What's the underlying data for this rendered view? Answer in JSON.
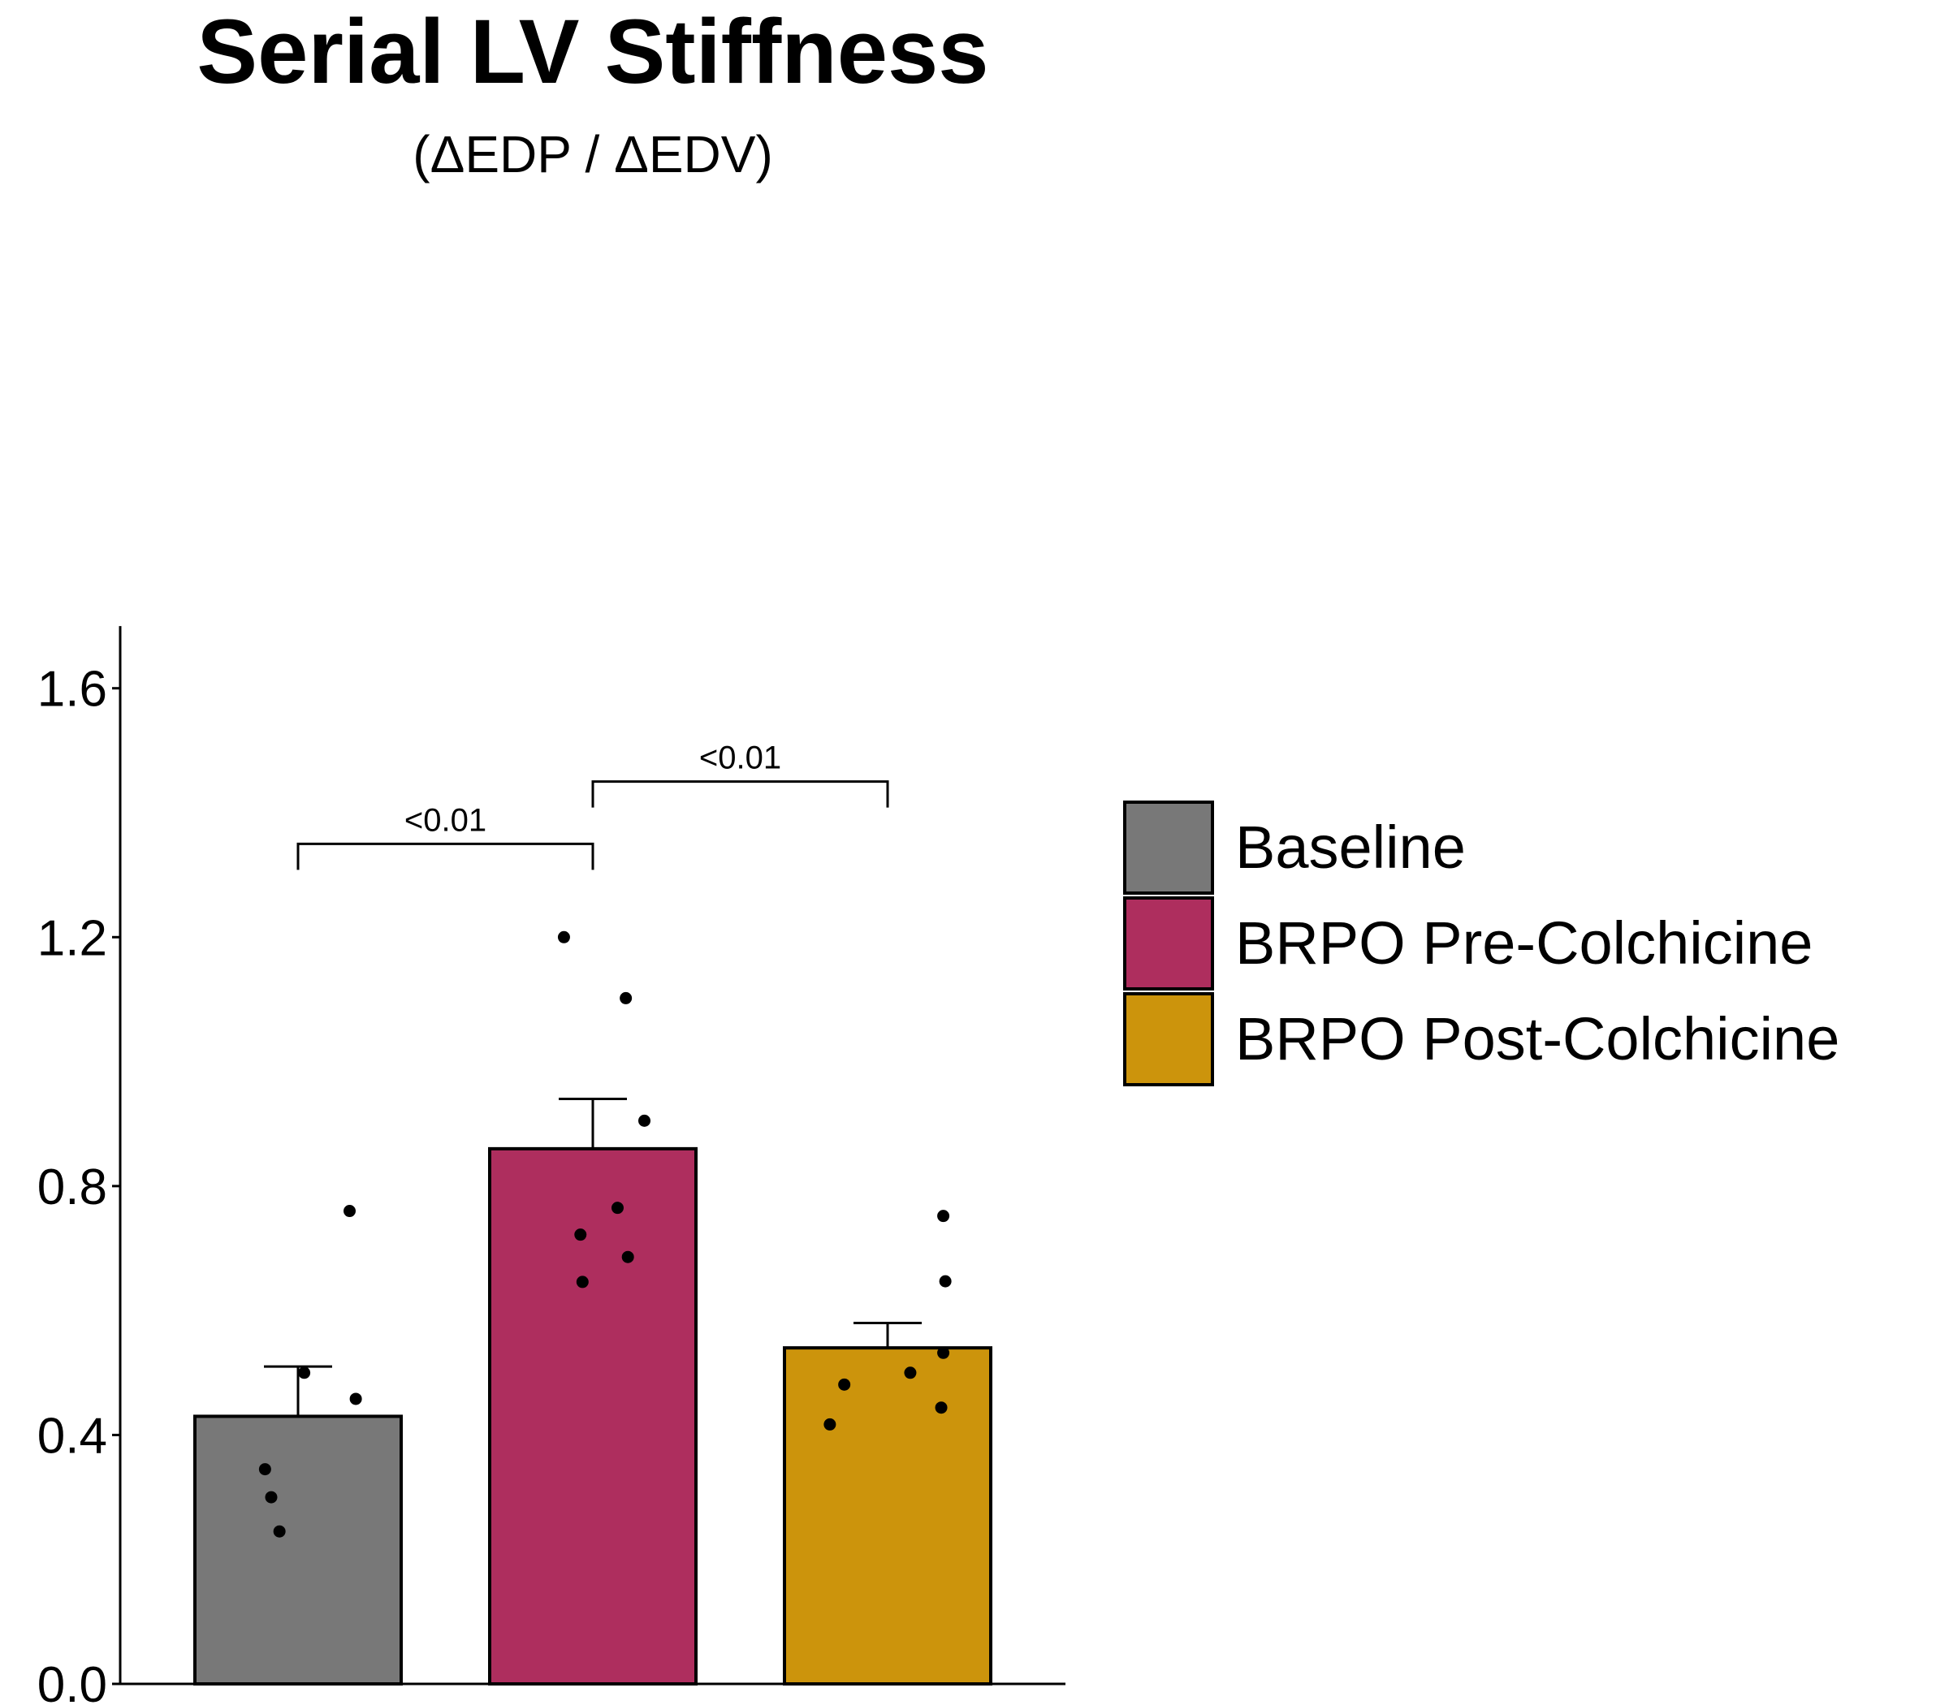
{
  "chart_data": {
    "type": "bar",
    "title": "Serial LV Stiffness",
    "subtitle": "(ΔEDP / ΔEDV)",
    "xlabel": "",
    "ylabel": "",
    "ylim": [
      0,
      1.7
    ],
    "yticks": [
      0.0,
      0.4,
      0.8,
      1.2,
      1.6
    ],
    "ytick_labels": [
      "0.0",
      "0.4",
      "0.8",
      "1.2",
      "1.6"
    ],
    "grid": false,
    "legend_position": "right",
    "categories": [
      "Baseline",
      "BRPO Pre-Colchicine",
      "BRPO Post-Colchicine"
    ],
    "values": [
      0.43,
      0.86,
      0.54
    ],
    "error_upper": [
      0.51,
      0.94,
      0.58
    ],
    "colors": [
      "#787878",
      "#AE2E5E",
      "#CC940C"
    ],
    "points": [
      [
        {
          "x_offset": -0.16,
          "y": 0.345
        },
        {
          "x_offset": -0.13,
          "y": 0.3
        },
        {
          "x_offset": -0.09,
          "y": 0.245
        },
        {
          "x_offset": 0.03,
          "y": 0.5
        },
        {
          "x_offset": 0.25,
          "y": 0.76
        },
        {
          "x_offset": 0.28,
          "y": 0.458
        }
      ],
      [
        {
          "x_offset": -0.14,
          "y": 1.2
        },
        {
          "x_offset": 0.16,
          "y": 1.102
        },
        {
          "x_offset": 0.25,
          "y": 0.905
        },
        {
          "x_offset": 0.12,
          "y": 0.765
        },
        {
          "x_offset": -0.06,
          "y": 0.722
        },
        {
          "x_offset": 0.17,
          "y": 0.686
        },
        {
          "x_offset": -0.05,
          "y": 0.646
        }
      ],
      [
        {
          "x_offset": 0.27,
          "y": 0.752
        },
        {
          "x_offset": 0.28,
          "y": 0.647
        },
        {
          "x_offset": 0.27,
          "y": 0.532
        },
        {
          "x_offset": 0.11,
          "y": 0.5
        },
        {
          "x_offset": -0.21,
          "y": 0.481
        },
        {
          "x_offset": 0.26,
          "y": 0.444
        },
        {
          "x_offset": -0.28,
          "y": 0.417
        }
      ]
    ],
    "comparisons": [
      {
        "from": 0,
        "to": 1,
        "y": 1.35,
        "label": "<0.01"
      },
      {
        "from": 1,
        "to": 2,
        "y": 1.45,
        "label": "<0.01"
      }
    ]
  }
}
